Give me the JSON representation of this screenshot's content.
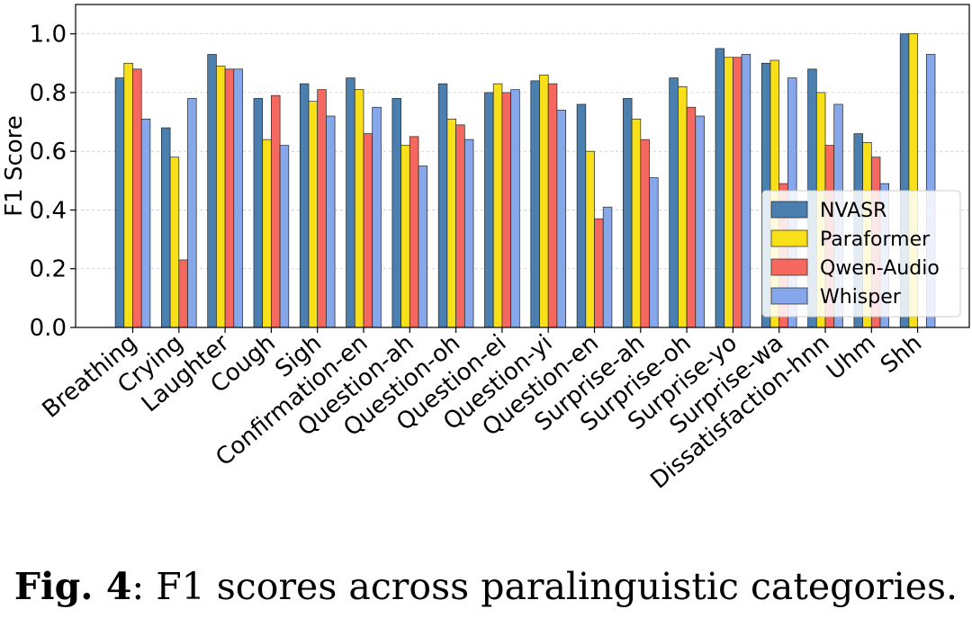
{
  "chart_data": {
    "type": "bar",
    "title": "",
    "xlabel": "",
    "ylabel": "F1 Score",
    "ylim": [
      0,
      1.1
    ],
    "yticks": [
      "0.0",
      "0.2",
      "0.4",
      "0.6",
      "0.8",
      "1.0"
    ],
    "grid": "horizontal",
    "legend_position": "lower-right",
    "categories": [
      "Breathing",
      "Crying",
      "Laughter",
      "Cough",
      "Sigh",
      "Confirmation-en",
      "Question-ah",
      "Question-oh",
      "Question-ei",
      "Question-yi",
      "Question-en",
      "Surprise-ah",
      "Surprise-oh",
      "Surprise-yo",
      "Surprise-wa",
      "Dissatisfaction-hnn",
      "Uhm",
      "Shh"
    ],
    "series": [
      {
        "name": "NVASR",
        "color": "#4a7fb0",
        "values": [
          0.85,
          0.68,
          0.93,
          0.78,
          0.83,
          0.85,
          0.78,
          0.83,
          0.8,
          0.84,
          0.76,
          0.78,
          0.85,
          0.95,
          0.9,
          0.88,
          0.66,
          1.0
        ]
      },
      {
        "name": "Paraformer",
        "color": "#f7e01a",
        "values": [
          0.9,
          0.58,
          0.89,
          0.64,
          0.77,
          0.81,
          0.62,
          0.71,
          0.83,
          0.86,
          0.6,
          0.71,
          0.82,
          0.92,
          0.91,
          0.8,
          0.63,
          1.0
        ]
      },
      {
        "name": "Qwen-Audio",
        "color": "#f4685f",
        "values": [
          0.88,
          0.23,
          0.88,
          0.79,
          0.81,
          0.66,
          0.65,
          0.69,
          0.8,
          0.83,
          0.37,
          0.64,
          0.75,
          0.92,
          0.49,
          0.62,
          0.58,
          0.0
        ]
      },
      {
        "name": "Whisper",
        "color": "#86a8ea",
        "values": [
          0.71,
          0.78,
          0.88,
          0.62,
          0.72,
          0.75,
          0.55,
          0.64,
          0.81,
          0.74,
          0.41,
          0.51,
          0.72,
          0.93,
          0.85,
          0.76,
          0.49,
          0.93
        ]
      }
    ]
  },
  "caption": {
    "label": "Fig. 4",
    "text": ": F1 scores across paralinguistic categories."
  }
}
